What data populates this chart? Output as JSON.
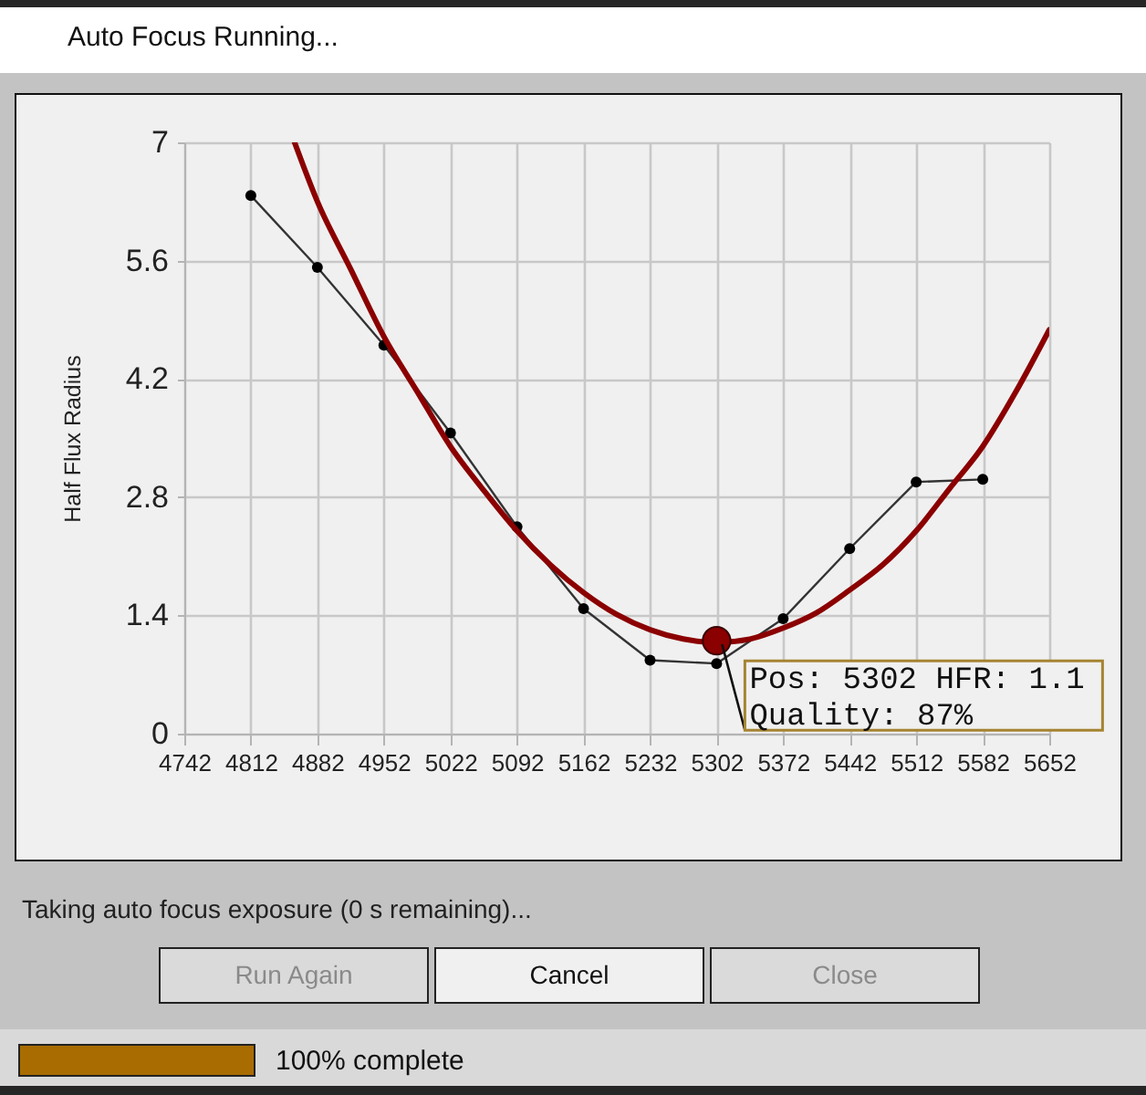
{
  "chart_data": {
    "type": "line",
    "title": "Auto Focus Running...",
    "ylabel": "Half Flux Radius",
    "xlim": [
      4742,
      5652
    ],
    "xticks": [
      4742,
      4812,
      4882,
      4952,
      5022,
      5092,
      5162,
      5232,
      5302,
      5372,
      5442,
      5512,
      5582,
      5652
    ],
    "ylim": [
      0,
      7
    ],
    "yticks": [
      0,
      1.4,
      2.8,
      4.2,
      5.6,
      7
    ],
    "grid": true,
    "marker": "circle",
    "series": [
      {
        "color": "#333333",
        "x": [
          4812,
          4882,
          4952,
          5022,
          5092,
          5162,
          5232,
          5302,
          5372,
          5442,
          5512,
          5582
        ],
        "values": [
          6.37,
          5.52,
          4.6,
          3.56,
          2.45,
          1.48,
          0.87,
          0.83,
          1.36,
          2.19,
          2.98,
          3.01
        ]
      },
      {
        "type": "line",
        "marker": "none",
        "color": "#8b0000",
        "x": [
          4858,
          4882,
          4917,
          4952,
          4987,
          5022,
          5057,
          5092,
          5127,
          5162,
          5197,
          5232,
          5267,
          5302,
          5337,
          5372,
          5407,
          5442,
          5477,
          5512,
          5547,
          5582,
          5617,
          5652
        ],
        "values": [
          7,
          6.3,
          5.5,
          4.7,
          4.05,
          3.4,
          2.88,
          2.4,
          2.0,
          1.67,
          1.41,
          1.23,
          1.12,
          1.08,
          1.12,
          1.25,
          1.43,
          1.7,
          2.0,
          2.4,
          2.9,
          3.4,
          4.05,
          4.78
        ]
      },
      {
        "type": "scatter",
        "color": "#8b0000",
        "x": [
          5302
        ],
        "values": [
          1.1
        ]
      }
    ],
    "annotations": [
      {
        "text": "Pos: 5302 HFR: 1.1\nQuality: 87%",
        "x": 5302,
        "y": 1.1
      },
      "Taking auto focus exposure (0 s remaining)...",
      "Run Again",
      "Cancel",
      "Close",
      "100% complete"
    ]
  }
}
